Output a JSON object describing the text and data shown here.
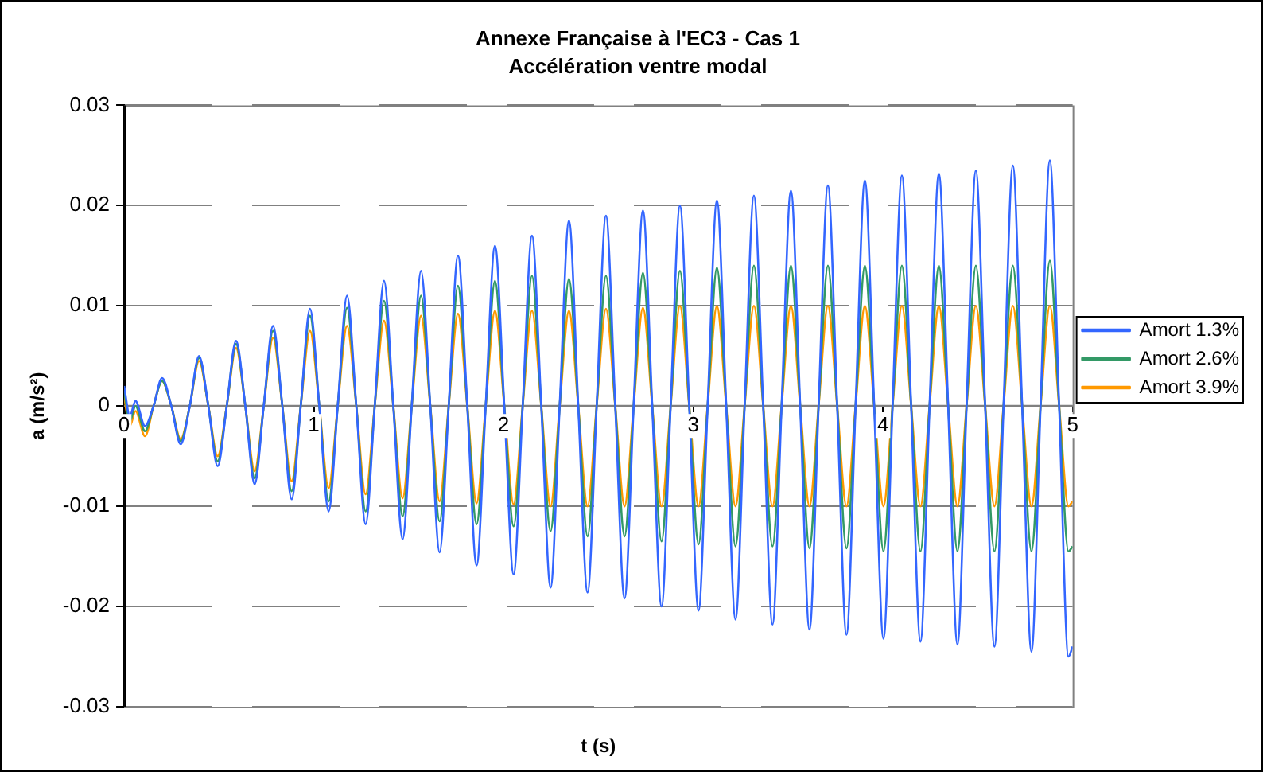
{
  "chart_data": {
    "type": "line",
    "title": "Annexe Française à l'EC3 - Cas 1",
    "subtitle": "Accélération ventre modal",
    "xlabel": "t (s)",
    "ylabel": "a (m/s²)",
    "x": [
      0,
      0.03,
      0.06,
      0.11,
      0.155,
      0.2,
      0.249,
      0.298,
      0.346,
      0.395,
      0.444,
      0.493,
      0.541,
      0.59,
      0.639,
      0.688,
      0.736,
      0.785,
      0.834,
      0.883,
      0.931,
      0.98,
      1.029,
      1.078,
      1.126,
      1.175,
      1.224,
      1.273,
      1.321,
      1.37,
      1.419,
      1.468,
      1.516,
      1.565,
      1.614,
      1.663,
      1.711,
      1.76,
      1.809,
      1.858,
      1.906,
      1.955,
      2.004,
      2.053,
      2.101,
      2.15,
      2.199,
      2.248,
      2.296,
      2.345,
      2.394,
      2.443,
      2.491,
      2.54,
      2.589,
      2.638,
      2.686,
      2.735,
      2.784,
      2.833,
      2.881,
      2.93,
      2.979,
      3.028,
      3.076,
      3.125,
      3.174,
      3.223,
      3.271,
      3.32,
      3.369,
      3.418,
      3.466,
      3.515,
      3.564,
      3.613,
      3.661,
      3.71,
      3.759,
      3.808,
      3.856,
      3.905,
      3.954,
      4.003,
      4.051,
      4.1,
      4.149,
      4.198,
      4.246,
      4.295,
      4.344,
      4.393,
      4.441,
      4.49,
      4.539,
      4.588,
      4.636,
      4.685,
      4.734,
      4.783,
      4.831,
      4.88,
      4.929,
      4.978,
      5
    ],
    "series": [
      {
        "name": "Amort 1.3%",
        "color": "#3366ff",
        "values": [
          0.002,
          -0.001,
          0.0005,
          -0.002,
          0,
          0.0028,
          0,
          -0.0038,
          0,
          0.005,
          0,
          -0.006,
          0,
          0.0065,
          0,
          -0.0078,
          0,
          0.008,
          0,
          -0.0093,
          0,
          0.0097,
          0,
          -0.0105,
          0,
          0.011,
          0,
          -0.0118,
          0,
          0.0125,
          0,
          -0.0133,
          0,
          0.0135,
          0,
          -0.0146,
          0,
          0.015,
          0,
          -0.0159,
          0,
          0.016,
          0,
          -0.0168,
          0,
          0.017,
          0,
          -0.0181,
          0,
          0.0185,
          0,
          -0.0186,
          0,
          0.019,
          0,
          -0.0192,
          0,
          0.0195,
          0,
          -0.02,
          0,
          0.02,
          0,
          -0.0204,
          0,
          0.0205,
          0,
          -0.0213,
          0,
          0.021,
          0,
          -0.0218,
          0,
          0.0215,
          0,
          -0.0223,
          0,
          0.022,
          0,
          -0.0228,
          0,
          0.0225,
          0,
          -0.0232,
          0,
          0.023,
          0,
          -0.0235,
          0,
          0.0232,
          0,
          -0.0238,
          0,
          0.0235,
          0,
          -0.024,
          0,
          0.024,
          0,
          -0.0245,
          0,
          0.0245,
          0,
          -0.025,
          -0.024
        ]
      },
      {
        "name": "Amort 2.6%",
        "color": "#339966",
        "values": [
          0.0015,
          -0.0015,
          0,
          -0.0025,
          0,
          0.0025,
          0,
          -0.0035,
          0,
          0.0048,
          0,
          -0.0055,
          0,
          0.0062,
          0,
          -0.0072,
          0,
          0.0075,
          0,
          -0.0085,
          0,
          0.009,
          0,
          -0.0095,
          0,
          0.0098,
          0,
          -0.0105,
          0,
          0.0105,
          0,
          -0.011,
          0,
          0.011,
          0,
          -0.0115,
          0,
          0.012,
          0,
          -0.0118,
          0,
          0.0125,
          0,
          -0.012,
          0,
          0.013,
          0,
          -0.0125,
          0,
          0.0127,
          0,
          -0.013,
          0,
          0.013,
          0,
          -0.013,
          0,
          0.0133,
          0,
          -0.0135,
          0,
          0.0135,
          0,
          -0.0138,
          0,
          0.0138,
          0,
          -0.014,
          0,
          0.014,
          0,
          -0.014,
          0,
          0.014,
          0,
          -0.0142,
          0,
          0.014,
          0,
          -0.0142,
          0,
          0.014,
          0,
          -0.0145,
          0,
          0.014,
          0,
          -0.0145,
          0,
          0.014,
          0,
          -0.0145,
          0,
          0.014,
          0,
          -0.0145,
          0,
          0.014,
          0,
          -0.0145,
          0,
          0.0145,
          0,
          -0.0145,
          -0.014
        ]
      },
      {
        "name": "Amort 3.9%",
        "color": "#ff9900",
        "values": [
          0.001,
          -0.002,
          -0.0005,
          -0.003,
          0,
          0.0025,
          0,
          -0.0033,
          0,
          0.0045,
          0,
          -0.005,
          0,
          0.0058,
          0,
          -0.0065,
          0,
          0.0068,
          0,
          -0.0075,
          0,
          0.0075,
          0,
          -0.0082,
          0,
          0.008,
          0,
          -0.0088,
          0,
          0.0085,
          0,
          -0.0092,
          0,
          0.009,
          0,
          -0.0095,
          0,
          0.0092,
          0,
          -0.0097,
          0,
          0.0095,
          0,
          -0.0098,
          0,
          0.0095,
          0,
          -0.01,
          0,
          0.0095,
          0,
          -0.01,
          0,
          0.0097,
          0,
          -0.01,
          0,
          0.0098,
          0,
          -0.01,
          0,
          0.01,
          0,
          -0.01,
          0,
          0.01,
          0,
          -0.01,
          0,
          0.01,
          0,
          -0.01,
          0,
          0.01,
          0,
          -0.01,
          0,
          0.01,
          0,
          -0.01,
          0,
          0.01,
          0,
          -0.01,
          0,
          0.01,
          0,
          -0.01,
          0,
          0.01,
          0,
          -0.01,
          0,
          0.01,
          0,
          -0.01,
          0,
          0.01,
          0,
          -0.01,
          0,
          0.01,
          0,
          -0.01,
          -0.0095
        ]
      }
    ],
    "xlim": [
      0,
      5
    ],
    "xticks": [
      0,
      1,
      2,
      3,
      4,
      5
    ],
    "ylim": [
      -0.03,
      0.03
    ],
    "yticks": [
      -0.03,
      -0.02,
      -0.01,
      0,
      0.01,
      0.02,
      0.03
    ],
    "grid": "y",
    "legend": "right",
    "marker": "none",
    "line_style": "solid"
  }
}
